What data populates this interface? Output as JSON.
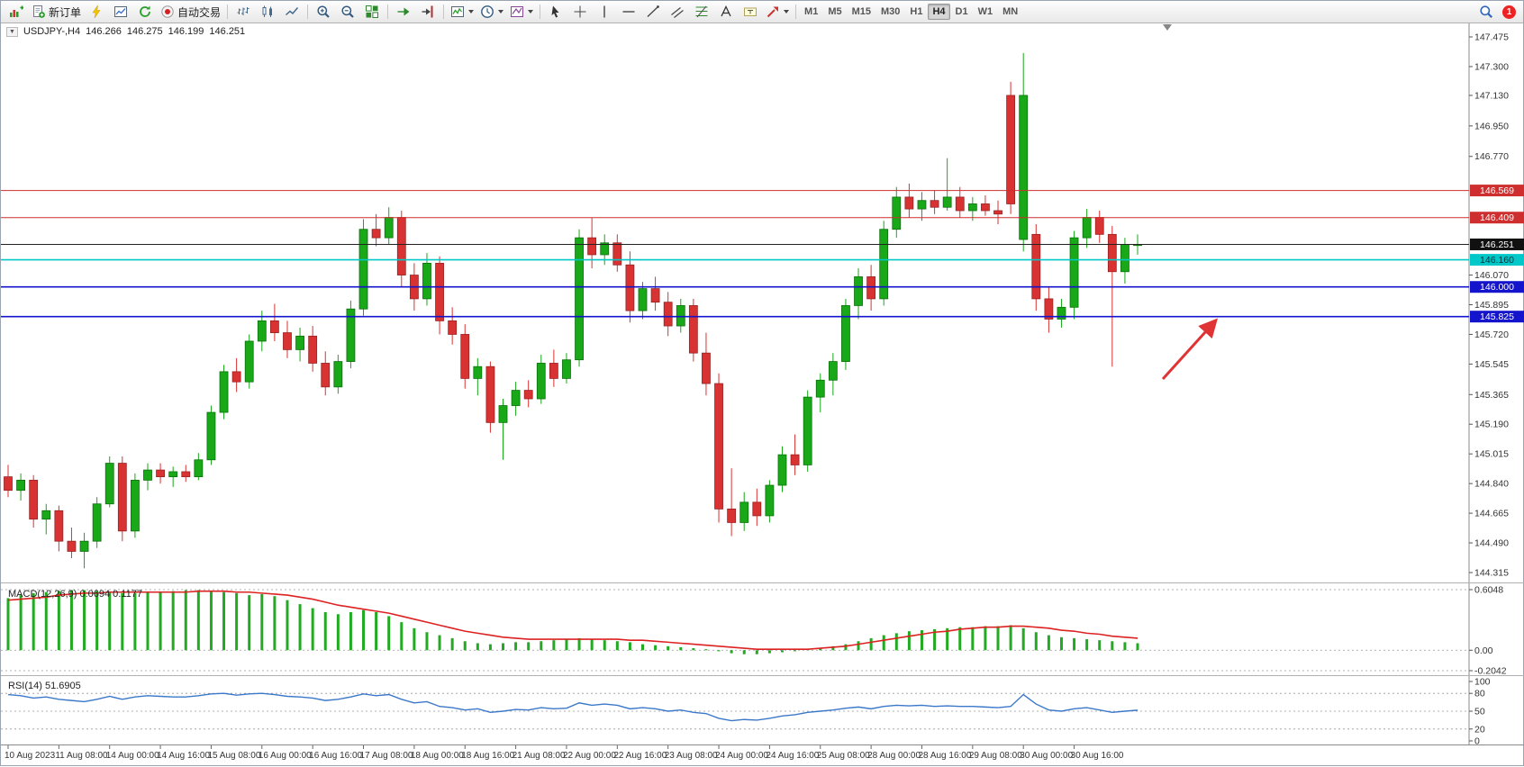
{
  "toolbar": {
    "groups": [
      {
        "items": [
          {
            "name": "new-chart",
            "icon": "new-chart-icon"
          },
          {
            "name": "new-order",
            "icon": "new-order-icon",
            "label": "新订单"
          },
          {
            "name": "expert-advisors",
            "icon": "expert-advisors-icon"
          },
          {
            "name": "market-watch",
            "icon": "market-watch-icon"
          },
          {
            "name": "refresh",
            "icon": "refresh-icon"
          },
          {
            "name": "auto-trading",
            "icon": "auto-trading-icon",
            "label": "自动交易"
          }
        ]
      },
      {
        "items": [
          {
            "name": "bar-chart",
            "icon": "bar-chart-icon"
          },
          {
            "name": "candlestick-chart",
            "icon": "candlestick-chart-icon"
          },
          {
            "name": "line-chart",
            "icon": "line-chart-icon"
          }
        ]
      },
      {
        "items": [
          {
            "name": "zoom-in",
            "icon": "zoom-in-icon"
          },
          {
            "name": "zoom-out",
            "icon": "zoom-out-icon"
          },
          {
            "name": "tile-windows",
            "icon": "tile-windows-icon"
          }
        ]
      },
      {
        "items": [
          {
            "name": "auto-scroll",
            "icon": "auto-scroll-icon"
          },
          {
            "name": "chart-shift",
            "icon": "chart-shift-icon"
          }
        ]
      },
      {
        "items": [
          {
            "name": "indicators",
            "icon": "indicators-icon",
            "dropdown": true
          },
          {
            "name": "periods",
            "icon": "periods-icon",
            "dropdown": true
          },
          {
            "name": "templates",
            "icon": "templates-icon",
            "dropdown": true
          }
        ]
      },
      {
        "items": [
          {
            "name": "cursor",
            "icon": "cursor-icon"
          },
          {
            "name": "crosshair",
            "icon": "crosshair-icon"
          },
          {
            "name": "vertical-line",
            "icon": "vertical-line-icon"
          },
          {
            "name": "horizontal-line",
            "icon": "horizontal-line-icon"
          },
          {
            "name": "trendline",
            "icon": "trendline-icon"
          },
          {
            "name": "channel",
            "icon": "channel-icon"
          },
          {
            "name": "fibonacci",
            "icon": "fibonacci-icon"
          },
          {
            "name": "text",
            "icon": "text-icon"
          },
          {
            "name": "text-label",
            "icon": "text-label-icon"
          },
          {
            "name": "shapes",
            "icon": "shapes-icon",
            "dropdown": true
          }
        ]
      }
    ],
    "timeframes": [
      "M1",
      "M5",
      "M15",
      "M30",
      "H1",
      "H4",
      "D1",
      "W1",
      "MN"
    ],
    "active_timeframe": "H4",
    "notification_count": "1"
  },
  "chart_header": {
    "symbol_period": "USDJPY-,H4",
    "open": "146.266",
    "high": "146.275",
    "low": "146.199",
    "close": "146.251"
  },
  "chart_data": {
    "type": "candlestick",
    "symbol": "USDJPY-",
    "timeframe": "H4",
    "price_axis": {
      "min": 144.315,
      "max": 147.475,
      "ticks": [
        "147.475",
        "147.300",
        "147.130",
        "146.950",
        "146.770",
        "146.070",
        "145.895",
        "145.720",
        "145.545",
        "145.365",
        "145.190",
        "145.015",
        "144.840",
        "144.665",
        "144.490",
        "144.315"
      ]
    },
    "hlines": [
      {
        "value": 146.569,
        "label": "146.569",
        "color": "#cf2e2e",
        "width": 1,
        "badge_bg": "#cf2e2e",
        "badge_fg": "#ffffff"
      },
      {
        "value": 146.409,
        "label": "146.409",
        "color": "#cf2e2e",
        "width": 1,
        "badge_bg": "#cf2e2e",
        "badge_fg": "#ffffff"
      },
      {
        "value": 146.251,
        "label": "146.251",
        "color": "#222222",
        "width": 1,
        "badge_bg": "#111111",
        "badge_fg": "#ffffff",
        "role": "bid"
      },
      {
        "value": 146.16,
        "label": "146.160",
        "color": "#00c8c8",
        "width": 1.6,
        "badge_bg": "#00c8c8",
        "badge_fg": "#00323a"
      },
      {
        "value": 146.0,
        "label": "146.000",
        "color": "#1414cc",
        "width": 1.6,
        "badge_bg": "#1414cc",
        "badge_fg": "#ffffff"
      },
      {
        "value": 145.825,
        "label": "145.825",
        "color": "#1414cc",
        "width": 1.6,
        "badge_bg": "#1414cc",
        "badge_fg": "#ffffff"
      }
    ],
    "candles": [
      [
        144.88,
        144.95,
        144.76,
        144.8
      ],
      [
        144.8,
        144.9,
        144.74,
        144.86
      ],
      [
        144.86,
        144.89,
        144.58,
        144.63
      ],
      [
        144.63,
        144.72,
        144.54,
        144.68
      ],
      [
        144.68,
        144.71,
        144.44,
        144.5
      ],
      [
        144.5,
        144.58,
        144.4,
        144.44
      ],
      [
        144.44,
        144.55,
        144.34,
        144.5
      ],
      [
        144.5,
        144.76,
        144.46,
        144.72
      ],
      [
        144.72,
        145.0,
        144.7,
        144.96
      ],
      [
        144.96,
        145.0,
        144.5,
        144.56
      ],
      [
        144.56,
        144.9,
        144.52,
        144.86
      ],
      [
        144.86,
        144.96,
        144.8,
        144.92
      ],
      [
        144.92,
        144.96,
        144.84,
        144.88
      ],
      [
        144.88,
        144.94,
        144.82,
        144.91
      ],
      [
        144.91,
        144.95,
        144.85,
        144.88
      ],
      [
        144.88,
        145.02,
        144.86,
        144.98
      ],
      [
        144.98,
        145.3,
        144.95,
        145.26
      ],
      [
        145.26,
        145.54,
        145.22,
        145.5
      ],
      [
        145.5,
        145.58,
        145.38,
        145.44
      ],
      [
        145.44,
        145.72,
        145.4,
        145.68
      ],
      [
        145.68,
        145.86,
        145.62,
        145.8
      ],
      [
        145.8,
        145.9,
        145.68,
        145.73
      ],
      [
        145.73,
        145.8,
        145.58,
        145.63
      ],
      [
        145.63,
        145.76,
        145.56,
        145.71
      ],
      [
        145.71,
        145.77,
        145.5,
        145.55
      ],
      [
        145.55,
        145.62,
        145.36,
        145.41
      ],
      [
        145.41,
        145.6,
        145.37,
        145.56
      ],
      [
        145.56,
        145.92,
        145.52,
        145.87
      ],
      [
        145.87,
        146.4,
        145.83,
        146.34
      ],
      [
        146.34,
        146.43,
        146.24,
        146.29
      ],
      [
        146.29,
        146.47,
        146.25,
        146.41
      ],
      [
        146.41,
        146.45,
        146.0,
        146.07
      ],
      [
        146.07,
        146.14,
        145.86,
        145.93
      ],
      [
        145.93,
        146.2,
        145.89,
        146.14
      ],
      [
        146.14,
        146.18,
        145.72,
        145.8
      ],
      [
        145.8,
        145.88,
        145.66,
        145.72
      ],
      [
        145.72,
        145.78,
        145.4,
        145.46
      ],
      [
        145.46,
        145.58,
        145.36,
        145.53
      ],
      [
        145.53,
        145.56,
        145.14,
        145.2
      ],
      [
        145.2,
        145.34,
        144.98,
        145.3
      ],
      [
        145.3,
        145.44,
        145.24,
        145.39
      ],
      [
        145.39,
        145.45,
        145.29,
        145.34
      ],
      [
        145.34,
        145.6,
        145.31,
        145.55
      ],
      [
        145.55,
        145.63,
        145.41,
        145.46
      ],
      [
        145.46,
        145.61,
        145.43,
        145.57
      ],
      [
        145.57,
        146.34,
        145.53,
        146.29
      ],
      [
        146.29,
        146.41,
        146.11,
        146.19
      ],
      [
        146.19,
        146.31,
        146.13,
        146.26
      ],
      [
        146.26,
        146.31,
        146.09,
        146.13
      ],
      [
        146.13,
        146.21,
        145.79,
        145.86
      ],
      [
        145.86,
        146.03,
        145.81,
        145.99
      ],
      [
        145.99,
        146.06,
        145.86,
        145.91
      ],
      [
        145.91,
        145.97,
        145.71,
        145.77
      ],
      [
        145.77,
        145.93,
        145.73,
        145.89
      ],
      [
        145.89,
        145.93,
        145.56,
        145.61
      ],
      [
        145.61,
        145.73,
        145.36,
        145.43
      ],
      [
        145.43,
        145.49,
        144.61,
        144.69
      ],
      [
        144.69,
        144.93,
        144.53,
        144.61
      ],
      [
        144.61,
        144.79,
        144.56,
        144.73
      ],
      [
        144.73,
        144.81,
        144.59,
        144.65
      ],
      [
        144.65,
        144.86,
        144.61,
        144.83
      ],
      [
        144.83,
        145.06,
        144.79,
        145.01
      ],
      [
        145.01,
        145.13,
        144.89,
        144.95
      ],
      [
        144.95,
        145.39,
        144.91,
        145.35
      ],
      [
        145.35,
        145.49,
        145.26,
        145.45
      ],
      [
        145.45,
        145.61,
        145.36,
        145.56
      ],
      [
        145.56,
        145.93,
        145.51,
        145.89
      ],
      [
        145.89,
        146.11,
        145.81,
        146.06
      ],
      [
        146.06,
        146.13,
        145.86,
        145.93
      ],
      [
        145.93,
        146.39,
        145.89,
        146.34
      ],
      [
        146.34,
        146.59,
        146.29,
        146.53
      ],
      [
        146.53,
        146.61,
        146.41,
        146.46
      ],
      [
        146.46,
        146.56,
        146.39,
        146.51
      ],
      [
        146.51,
        146.57,
        146.43,
        146.47
      ],
      [
        146.47,
        146.76,
        146.45,
        146.53
      ],
      [
        146.53,
        146.59,
        146.41,
        146.45
      ],
      [
        146.45,
        146.53,
        146.39,
        146.49
      ],
      [
        146.49,
        146.54,
        146.42,
        146.45
      ],
      [
        146.45,
        146.51,
        146.37,
        146.43
      ],
      [
        147.13,
        147.21,
        146.43,
        146.49
      ],
      [
        146.28,
        147.38,
        146.21,
        147.13
      ],
      [
        146.31,
        146.37,
        145.86,
        145.93
      ],
      [
        145.93,
        146.0,
        145.73,
        145.81
      ],
      [
        145.81,
        145.93,
        145.76,
        145.88
      ],
      [
        145.88,
        146.33,
        145.81,
        146.29
      ],
      [
        146.29,
        146.46,
        146.23,
        146.41
      ],
      [
        146.41,
        146.45,
        146.26,
        146.31
      ],
      [
        146.31,
        146.36,
        145.53,
        146.09
      ],
      [
        146.09,
        146.29,
        146.02,
        146.25
      ],
      [
        146.25,
        146.31,
        146.19,
        146.251
      ]
    ],
    "label_every": 4,
    "time_labels": [
      "10 Aug 2023",
      "11 Aug 08:00",
      "14 Aug 00:00",
      "14 Aug 16:00",
      "15 Aug 08:00",
      "16 Aug 00:00",
      "16 Aug 16:00",
      "17 Aug 08:00",
      "18 Aug 00:00",
      "18 Aug 16:00",
      "21 Aug 08:00",
      "22 Aug 00:00",
      "22 Aug 16:00",
      "23 Aug 08:00",
      "24 Aug 00:00",
      "24 Aug 16:00",
      "25 Aug 08:00",
      "28 Aug 00:00",
      "28 Aug 16:00",
      "29 Aug 08:00",
      "30 Aug 00:00",
      "30 Aug 16:00"
    ],
    "macd": {
      "label": "MACD(12,26,9)",
      "value_main": "0.0694",
      "value_signal": "0.1177",
      "axis": [
        {
          "label": "0.6048",
          "value": 0.6048
        },
        {
          "label": "0.00",
          "value": 0
        },
        {
          "label": "-0.2042",
          "value": -0.2042
        }
      ],
      "range": [
        -0.2042,
        0.6048
      ],
      "histogram": [
        0.52,
        0.55,
        0.57,
        0.58,
        0.59,
        0.6,
        0.6,
        0.59,
        0.58,
        0.57,
        0.57,
        0.58,
        0.58,
        0.59,
        0.6,
        0.6,
        0.59,
        0.58,
        0.57,
        0.55,
        0.56,
        0.54,
        0.5,
        0.46,
        0.42,
        0.38,
        0.36,
        0.38,
        0.4,
        0.38,
        0.34,
        0.28,
        0.22,
        0.18,
        0.15,
        0.12,
        0.09,
        0.07,
        0.06,
        0.07,
        0.08,
        0.08,
        0.09,
        0.1,
        0.11,
        0.12,
        0.11,
        0.1,
        0.09,
        0.08,
        0.06,
        0.05,
        0.04,
        0.03,
        0.02,
        0.01,
        -0.01,
        -0.03,
        -0.04,
        -0.04,
        -0.03,
        -0.02,
        -0.01,
        0.01,
        0.02,
        0.04,
        0.06,
        0.09,
        0.12,
        0.15,
        0.17,
        0.19,
        0.2,
        0.21,
        0.22,
        0.23,
        0.23,
        0.24,
        0.24,
        0.25,
        0.22,
        0.18,
        0.15,
        0.13,
        0.12,
        0.11,
        0.1,
        0.09,
        0.08,
        0.07
      ],
      "signal": [
        0.5,
        0.51,
        0.52,
        0.53,
        0.55,
        0.56,
        0.57,
        0.57,
        0.58,
        0.58,
        0.58,
        0.58,
        0.58,
        0.58,
        0.58,
        0.59,
        0.59,
        0.59,
        0.58,
        0.58,
        0.57,
        0.56,
        0.55,
        0.53,
        0.51,
        0.48,
        0.45,
        0.43,
        0.41,
        0.39,
        0.37,
        0.34,
        0.31,
        0.28,
        0.25,
        0.22,
        0.19,
        0.17,
        0.15,
        0.13,
        0.12,
        0.11,
        0.11,
        0.11,
        0.11,
        0.11,
        0.11,
        0.11,
        0.11,
        0.1,
        0.1,
        0.09,
        0.08,
        0.07,
        0.06,
        0.05,
        0.04,
        0.03,
        0.02,
        0.01,
        0.01,
        0.01,
        0.01,
        0.01,
        0.02,
        0.03,
        0.04,
        0.06,
        0.08,
        0.1,
        0.12,
        0.14,
        0.16,
        0.18,
        0.19,
        0.21,
        0.22,
        0.23,
        0.23,
        0.24,
        0.24,
        0.23,
        0.22,
        0.2,
        0.19,
        0.17,
        0.16,
        0.14,
        0.13,
        0.12
      ]
    },
    "rsi": {
      "label": "RSI(14)",
      "value": "51.6905",
      "levels": [
        80,
        50,
        20
      ],
      "axis": [
        {
          "label": "100",
          "value": 100
        },
        {
          "label": "80",
          "value": 80
        },
        {
          "label": "50",
          "value": 50
        },
        {
          "label": "20",
          "value": 20
        },
        {
          "label": "0",
          "value": 0
        }
      ],
      "range": [
        0,
        100
      ],
      "values": [
        78,
        76,
        72,
        74,
        70,
        68,
        66,
        70,
        75,
        70,
        74,
        76,
        75,
        74,
        74,
        76,
        79,
        80,
        77,
        79,
        80,
        78,
        75,
        74,
        72,
        68,
        70,
        74,
        79,
        76,
        78,
        70,
        64,
        66,
        58,
        56,
        52,
        54,
        48,
        50,
        53,
        52,
        56,
        54,
        55,
        64,
        60,
        62,
        60,
        54,
        56,
        54,
        50,
        52,
        48,
        46,
        38,
        34,
        36,
        35,
        38,
        42,
        44,
        48,
        50,
        52,
        55,
        57,
        54,
        58,
        60,
        59,
        60,
        58,
        59,
        58,
        58,
        57,
        56,
        58,
        78,
        62,
        52,
        50,
        54,
        56,
        52,
        48,
        50,
        51.69
      ]
    },
    "annotation_arrow": {
      "tail": [
        1290,
        420
      ],
      "head": [
        1347,
        357
      ],
      "color": "#e03434"
    },
    "colors": {
      "bull": "#18a818",
      "bear": "#d83232",
      "macd_histogram": "#22aa22",
      "macd_signal": "#dd2222",
      "rsi_line": "#3b78c9"
    }
  }
}
